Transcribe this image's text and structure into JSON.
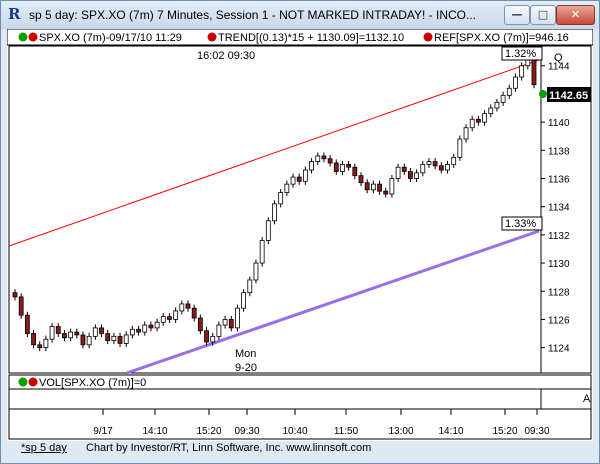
{
  "window": {
    "title": "sp 5 day: SPX.XO (7m) 7 Minutes, Session 1 - NOT MARKED INTRADAY! - INCO...",
    "minimize": "—",
    "maximize": "□",
    "close": "✕"
  },
  "header": {
    "instrument": "SPX.XO (7m)-09/17/10 11:29",
    "trend": "TREND[(0.13)*15 + 1130.09]=1132.10",
    "ref": "REF[SPX.XO (7m)]=946.16",
    "q_button": "Q",
    "cursor_time": "16:02  09:30"
  },
  "annotations": {
    "upper_pct": "1.32%",
    "lower_pct": "1.33%",
    "last_price": "1142.65",
    "day_label": "Mon",
    "day_date": "9-20"
  },
  "volume_pane": {
    "label": "VOL[SPX.XO (7m)]=0",
    "a_button": "A"
  },
  "status": {
    "left": "*sp 5 day",
    "right": "Chart by Investor/RT, Linn Software, Inc. www.linnsoft.com"
  },
  "colors": {
    "up_candle": "#ffffff",
    "down_candle": "#8b1a1a",
    "upper_trend": "#ff0000",
    "lower_trend": "#9a6ee8",
    "last_price_bg": "#000000",
    "indicator_green": "#00a000",
    "indicator_red": "#cc0000"
  },
  "chart_data": {
    "type": "candlestick",
    "y_ticks": [
      1124,
      1126,
      1128,
      1130,
      1132,
      1134,
      1136,
      1138,
      1140,
      1142,
      1144
    ],
    "x_ticks": [
      "9/17",
      "14:10",
      "15:20",
      "09:30",
      "10:40",
      "11:50",
      "13:00",
      "14:10",
      "15:20",
      "09:30"
    ],
    "ylim": [
      1122.2,
      1145.4
    ],
    "closes": [
      1127.6,
      1126.3,
      1125.0,
      1124.2,
      1124.0,
      1124.6,
      1125.5,
      1125.0,
      1124.7,
      1125.1,
      1124.9,
      1124.2,
      1124.8,
      1125.4,
      1125.0,
      1124.5,
      1124.8,
      1124.3,
      1124.9,
      1125.3,
      1125.1,
      1125.6,
      1125.4,
      1125.8,
      1126.2,
      1126.0,
      1126.6,
      1127.1,
      1126.8,
      1126.1,
      1125.2,
      1124.4,
      1124.8,
      1125.6,
      1126.0,
      1125.4,
      1126.8,
      1127.9,
      1128.8,
      1130.0,
      1131.6,
      1133.0,
      1134.2,
      1135.0,
      1135.6,
      1136.1,
      1135.8,
      1136.6,
      1137.2,
      1137.6,
      1137.4,
      1137.1,
      1136.5,
      1137.0,
      1136.8,
      1136.2,
      1135.7,
      1135.2,
      1135.6,
      1135.1,
      1134.9,
      1136.0,
      1136.8,
      1136.5,
      1136.0,
      1136.4,
      1137.0,
      1137.2,
      1136.9,
      1136.6,
      1137.0,
      1137.5,
      1138.8,
      1139.6,
      1140.2,
      1140.0,
      1140.6,
      1141.0,
      1141.4,
      1141.9,
      1142.4,
      1143.2,
      1144.0,
      1144.6,
      1142.65
    ]
  }
}
